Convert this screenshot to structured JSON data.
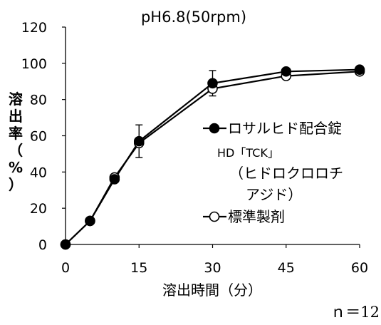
{
  "chart_data": {
    "type": "line",
    "title": "pH6.8(50rpm)",
    "xlabel": "溶出時間（分）",
    "ylabel": "溶出率（%）",
    "xlim": [
      0,
      60
    ],
    "ylim": [
      0,
      120
    ],
    "xticks": [
      0,
      15,
      30,
      45,
      60
    ],
    "yticks": [
      0,
      20,
      40,
      60,
      80,
      100,
      120
    ],
    "grid": false,
    "series": [
      {
        "name": "ロサルヒド配合錠HD「TCK」（ヒドロクロロチアジド）",
        "name_lines": [
          "ロサルヒド配合錠",
          "HD「TCK」",
          "（ヒドロクロロチ",
          "アジド）"
        ],
        "marker": "filled-circle",
        "x": [
          0,
          5,
          10,
          15,
          30,
          45,
          60
        ],
        "y": [
          0,
          13,
          36,
          57,
          89,
          95.5,
          96.5
        ],
        "error": [
          0,
          0,
          0,
          9,
          7,
          0,
          0
        ]
      },
      {
        "name": "標準製剤",
        "name_lines": [
          "標準製剤"
        ],
        "marker": "open-circle",
        "x": [
          0,
          5,
          10,
          15,
          30,
          45,
          60
        ],
        "y": [
          0,
          13,
          37,
          56,
          86,
          93,
          95.5
        ]
      }
    ],
    "legend_position": "right",
    "note": "ｎ＝12"
  }
}
